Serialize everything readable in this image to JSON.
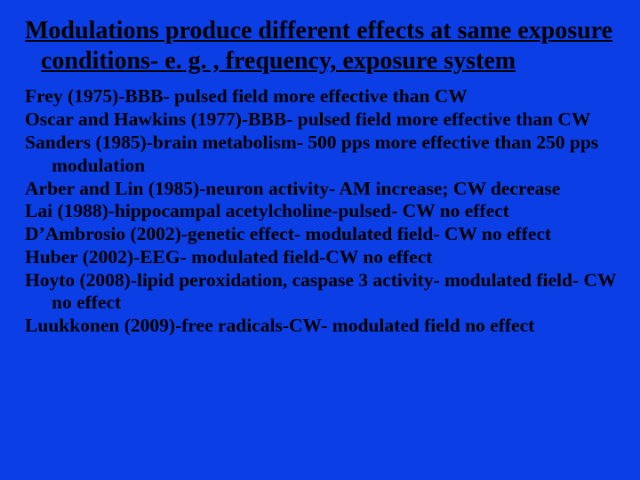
{
  "slide": {
    "background_color": "#0b3fe5",
    "text_color": "#000000",
    "font_family": "Times New Roman",
    "title": {
      "text": "Modulations produce different effects at same exposure conditions- e. g. , frequency, exposure system",
      "fontsize": 28,
      "weight": "bold",
      "underline": true
    },
    "body": {
      "fontsize": 21.5,
      "weight": "bold",
      "entries": [
        "Frey (1975)-BBB- pulsed field more effective than CW",
        "Oscar and Hawkins (1977)-BBB- pulsed field more effective than CW",
        "Sanders (1985)-brain metabolism- 500 pps more effective than 250 pps modulation",
        "Arber and Lin (1985)-neuron activity- AM increase; CW decrease",
        "Lai (1988)-hippocampal acetylcholine-pulsed- CW no effect",
        "D’Ambrosio (2002)-genetic effect- modulated field- CW no effect",
        "Huber (2002)-EEG- modulated field-CW no effect",
        "Hoyto (2008)-lipid peroxidation, caspase 3 activity- modulated field- CW no effect",
        "Luukkonen (2009)-free radicals-CW- modulated field no effect"
      ]
    }
  }
}
